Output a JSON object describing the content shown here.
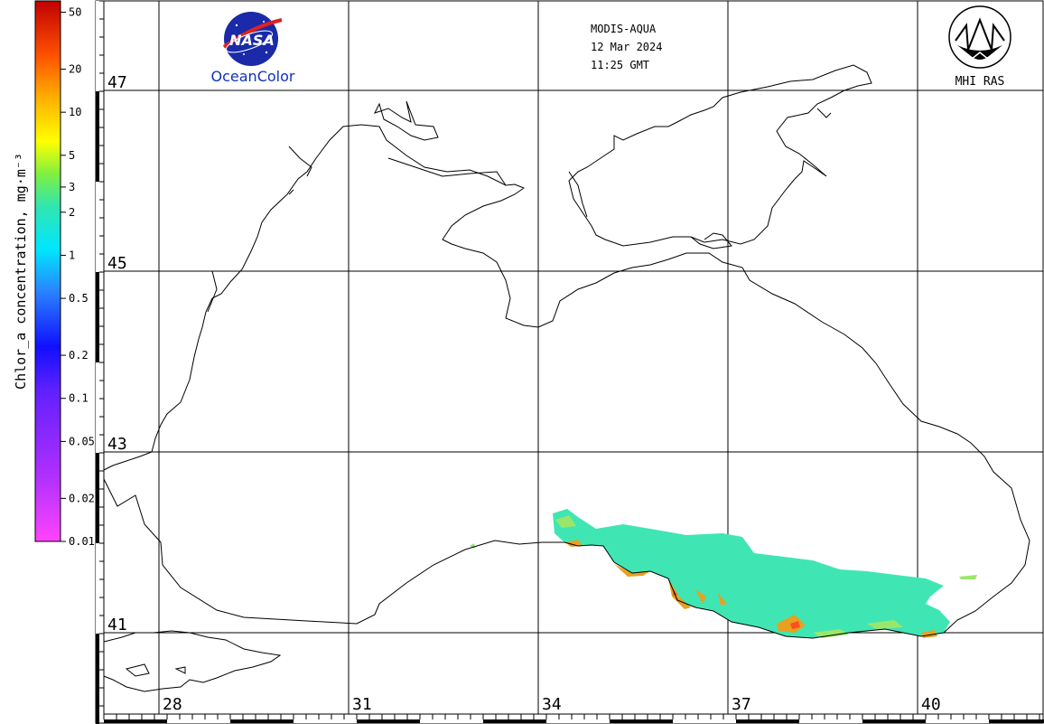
{
  "header": {
    "sensor": "MODIS-AQUA",
    "date": "12 Mar 2024",
    "time": "11:25 GMT"
  },
  "logos": {
    "nasa_text": "NASA",
    "oceancolor_text": "OceanColor",
    "mhi_text": "MHI RAS"
  },
  "colorbar": {
    "label": "Chlor_a concentration, mg·m⁻³",
    "ticks": [
      {
        "value": 50,
        "label": "50"
      },
      {
        "value": 20,
        "label": "20"
      },
      {
        "value": 10,
        "label": "10"
      },
      {
        "value": 5,
        "label": "5"
      },
      {
        "value": 3,
        "label": "3"
      },
      {
        "value": 2,
        "label": "2"
      },
      {
        "value": 1,
        "label": "1"
      },
      {
        "value": 0.5,
        "label": "0.5"
      },
      {
        "value": 0.2,
        "label": "0.2"
      },
      {
        "value": 0.1,
        "label": "0.1"
      },
      {
        "value": 0.05,
        "label": "0.05"
      },
      {
        "value": 0.02,
        "label": "0.02"
      },
      {
        "value": 0.01,
        "label": "0.01"
      }
    ],
    "scale": "log",
    "range": [
      0.01,
      60
    ]
  },
  "grid": {
    "latitudes": [
      {
        "value": 47,
        "label": "47"
      },
      {
        "value": 45,
        "label": "45"
      },
      {
        "value": 43,
        "label": "43"
      },
      {
        "value": 41,
        "label": "41"
      }
    ],
    "longitudes": [
      {
        "value": 28,
        "label": "28"
      },
      {
        "value": 31,
        "label": "31"
      },
      {
        "value": 34,
        "label": "34"
      },
      {
        "value": 37,
        "label": "37"
      },
      {
        "value": 40,
        "label": "40"
      }
    ]
  },
  "colors": {
    "coast": "#000000",
    "grid": "#000000",
    "chlorophyll_main": "#3fe6b4",
    "chlorophyll_high": "#e8a020"
  }
}
